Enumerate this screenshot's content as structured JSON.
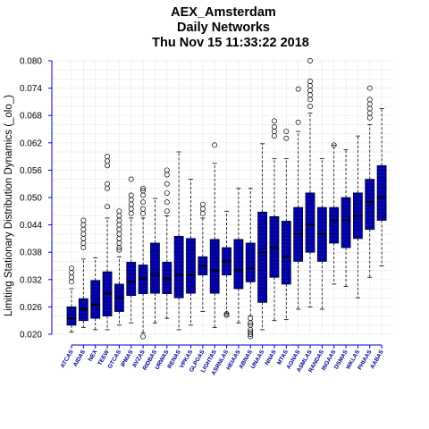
{
  "chart_data": {
    "type": "boxplot",
    "title_lines": [
      "AEX_Amsterdam",
      "Daily Networks",
      "Thu Nov 15 11:33:22 2018"
    ],
    "ylabel": "Limiting Stationary Distribution Dynamics (_olo_)",
    "ylim": [
      0.02,
      0.08
    ],
    "yticks": [
      "0.020",
      "0.026",
      "0.032",
      "0.038",
      "0.044",
      "0.050",
      "0.056",
      "0.062",
      "0.068",
      "0.074",
      "0.080"
    ],
    "grid": true,
    "colors": {
      "box": "#0000a0",
      "whisker": "#000000",
      "axis": "#0000cc",
      "label": "#00008b",
      "grid": "#d8d8d8"
    },
    "categories": [
      "ATCAS",
      "AIDAS",
      "NEX",
      "TEEW",
      "GTCAS",
      "IPMAS",
      "AVZAS",
      "RIDBAS",
      "URWAS",
      "RENAS",
      "VPKAS",
      "GLPGAS",
      "LIGHTAS",
      "ASRNLAS",
      "HEIAAS",
      "ABNAS",
      "UNAAS",
      "NNAS",
      "MTAS",
      "AGNAS",
      "ASMLAS",
      "RANDAS",
      "INGAAS",
      "DSMAS",
      "WKLAS",
      "PHIAAS",
      "AABAS"
    ],
    "boxes": [
      {
        "label": "ATCAS",
        "whislo": 0.0205,
        "q1": 0.022,
        "med": 0.0235,
        "q3": 0.026,
        "whishi": 0.03,
        "fliers": [
          0.0315,
          0.0325,
          0.0335,
          0.0345
        ]
      },
      {
        "label": "AIDAS",
        "whislo": 0.0215,
        "q1": 0.023,
        "med": 0.0255,
        "q3": 0.0278,
        "whishi": 0.0365,
        "fliers": [
          0.039,
          0.04,
          0.041,
          0.042,
          0.043,
          0.044,
          0.045
        ]
      },
      {
        "label": "NEX",
        "whislo": 0.021,
        "q1": 0.0235,
        "med": 0.0265,
        "q3": 0.0318,
        "whishi": 0.0368,
        "fliers": []
      },
      {
        "label": "TEEW",
        "whislo": 0.021,
        "q1": 0.024,
        "med": 0.029,
        "q3": 0.0337,
        "whishi": 0.0455,
        "fliers": [
          0.048,
          0.052,
          0.053,
          0.057,
          0.058,
          0.059
        ]
      },
      {
        "label": "GTCAS",
        "whislo": 0.022,
        "q1": 0.025,
        "med": 0.028,
        "q3": 0.031,
        "whishi": 0.037,
        "fliers": [
          0.0385,
          0.039,
          0.04,
          0.041,
          0.042,
          0.043,
          0.044,
          0.045,
          0.046,
          0.047
        ]
      },
      {
        "label": "IPMAS",
        "whislo": 0.0225,
        "q1": 0.0285,
        "med": 0.0315,
        "q3": 0.0358,
        "whishi": 0.0455,
        "fliers": [
          0.0465,
          0.0475,
          0.0485,
          0.0495,
          0.0505,
          0.054
        ]
      },
      {
        "label": "AVZAS",
        "whislo": 0.0203,
        "q1": 0.0289,
        "med": 0.0322,
        "q3": 0.0352,
        "whishi": 0.0455,
        "fliers": [
          0.0465,
          0.0475,
          0.049,
          0.0505,
          0.0515,
          0.052,
          0.0195
        ]
      },
      {
        "label": "RIDBAS",
        "whislo": 0.0225,
        "q1": 0.029,
        "med": 0.033,
        "q3": 0.04,
        "whishi": 0.0498,
        "fliers": []
      },
      {
        "label": "URWAS",
        "whislo": 0.0235,
        "q1": 0.0289,
        "med": 0.0322,
        "q3": 0.0358,
        "whishi": 0.046,
        "fliers": [
          0.047,
          0.049,
          0.051,
          0.053,
          0.055,
          0.056
        ]
      },
      {
        "label": "RENAS",
        "whislo": 0.021,
        "q1": 0.028,
        "med": 0.033,
        "q3": 0.0415,
        "whishi": 0.06,
        "fliers": []
      },
      {
        "label": "VPKAS",
        "whislo": 0.022,
        "q1": 0.029,
        "med": 0.033,
        "q3": 0.041,
        "whishi": 0.054,
        "fliers": []
      },
      {
        "label": "GLPGAS",
        "whislo": 0.025,
        "q1": 0.033,
        "med": 0.035,
        "q3": 0.037,
        "whishi": 0.0455,
        "fliers": [
          0.0465,
          0.0475,
          0.0485
        ]
      },
      {
        "label": "LIGHTAS",
        "whislo": 0.0215,
        "q1": 0.029,
        "med": 0.034,
        "q3": 0.0408,
        "whishi": 0.0575,
        "fliers": [
          0.0615
        ]
      },
      {
        "label": "ASRNLAS",
        "whislo": 0.0245,
        "q1": 0.033,
        "med": 0.036,
        "q3": 0.039,
        "whishi": 0.047,
        "fliers": [
          0.0245,
          0.0242
        ]
      },
      {
        "label": "HEIAAS",
        "whislo": 0.0225,
        "q1": 0.03,
        "med": 0.034,
        "q3": 0.0408,
        "whishi": 0.052,
        "fliers": []
      },
      {
        "label": "ABNAS",
        "whislo": 0.024,
        "q1": 0.0315,
        "med": 0.0345,
        "q3": 0.04,
        "whishi": 0.052,
        "fliers": [
          0.0235,
          0.0225,
          0.022,
          0.021,
          0.02,
          0.0195,
          0.0205
        ]
      },
      {
        "label": "UNAAS",
        "whislo": 0.021,
        "q1": 0.027,
        "med": 0.038,
        "q3": 0.0468,
        "whishi": 0.0618,
        "fliers": []
      },
      {
        "label": "NNAS",
        "whislo": 0.023,
        "q1": 0.0325,
        "med": 0.039,
        "q3": 0.0458,
        "whishi": 0.0585,
        "fliers": [
          0.0635,
          0.0645,
          0.0655,
          0.0668
        ]
      },
      {
        "label": "MTAS",
        "whislo": 0.0232,
        "q1": 0.031,
        "med": 0.037,
        "q3": 0.0448,
        "whishi": 0.0585,
        "fliers": [
          0.063,
          0.0645
        ]
      },
      {
        "label": "AGNAS",
        "whislo": 0.0255,
        "q1": 0.036,
        "med": 0.042,
        "q3": 0.0478,
        "whishi": 0.0645,
        "fliers": [
          0.0665,
          0.0738
        ]
      },
      {
        "label": "ASMLAS",
        "whislo": 0.026,
        "q1": 0.038,
        "med": 0.044,
        "q3": 0.051,
        "whishi": 0.0685,
        "fliers": [
          0.07,
          0.0715,
          0.0725,
          0.0735,
          0.0745,
          0.0755,
          0.08
        ]
      },
      {
        "label": "RANDAS",
        "whislo": 0.0255,
        "q1": 0.036,
        "med": 0.042,
        "q3": 0.0478,
        "whishi": 0.0585,
        "fliers": []
      },
      {
        "label": "INGAAS",
        "whislo": 0.031,
        "q1": 0.04,
        "med": 0.045,
        "q3": 0.0478,
        "whishi": 0.0615,
        "fliers": [
          0.0615
        ]
      },
      {
        "label": "DSMAS",
        "whislo": 0.0305,
        "q1": 0.039,
        "med": 0.045,
        "q3": 0.05,
        "whishi": 0.0605,
        "fliers": []
      },
      {
        "label": "WKLAS",
        "whislo": 0.028,
        "q1": 0.041,
        "med": 0.046,
        "q3": 0.051,
        "whishi": 0.0635,
        "fliers": []
      },
      {
        "label": "PHIAAS",
        "whislo": 0.0325,
        "q1": 0.043,
        "med": 0.049,
        "q3": 0.054,
        "whishi": 0.066,
        "fliers": [
          0.0675,
          0.0685,
          0.0695,
          0.0705,
          0.0715,
          0.074
        ]
      },
      {
        "label": "AABAS",
        "whislo": 0.035,
        "q1": 0.045,
        "med": 0.05,
        "q3": 0.057,
        "whishi": 0.0695,
        "fliers": []
      }
    ]
  }
}
